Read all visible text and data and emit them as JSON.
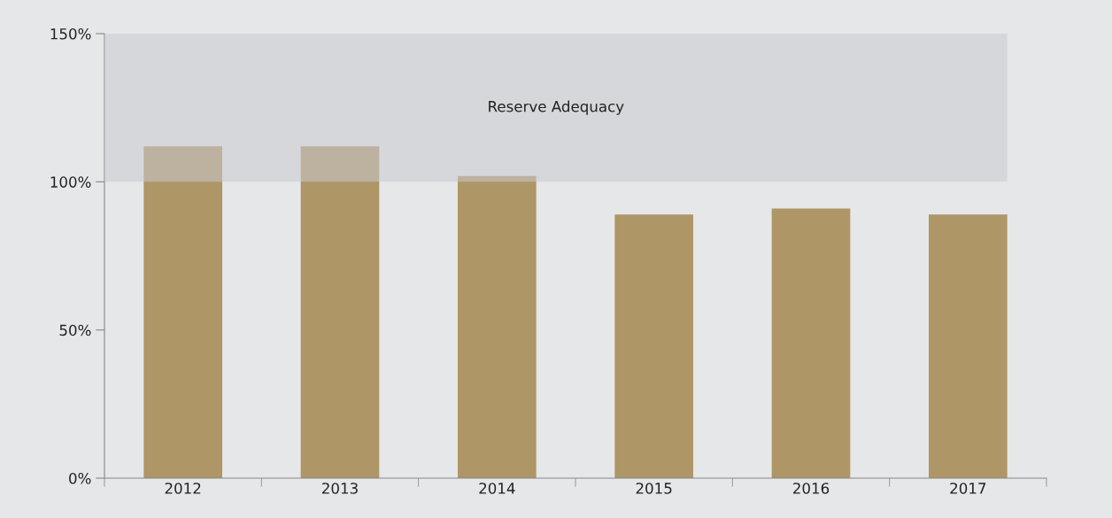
{
  "chart_data": {
    "type": "bar",
    "categories": [
      "2012",
      "2013",
      "2014",
      "2015",
      "2016",
      "2017"
    ],
    "values": [
      112,
      112,
      102,
      89,
      91,
      89
    ],
    "color": "#ae9666",
    "ylim": [
      0,
      150
    ],
    "yticks": [
      {
        "value": 0,
        "label": "0%"
      },
      {
        "value": 50,
        "label": "50%"
      },
      {
        "value": 100,
        "label": "100%"
      },
      {
        "value": 150,
        "label": "150%"
      }
    ],
    "bands": [
      {
        "axis": "y",
        "from": 100,
        "to": 150,
        "label": "Reserve Adequacy",
        "color": "#c9cbce"
      }
    ],
    "grid": false,
    "legend": false
  }
}
